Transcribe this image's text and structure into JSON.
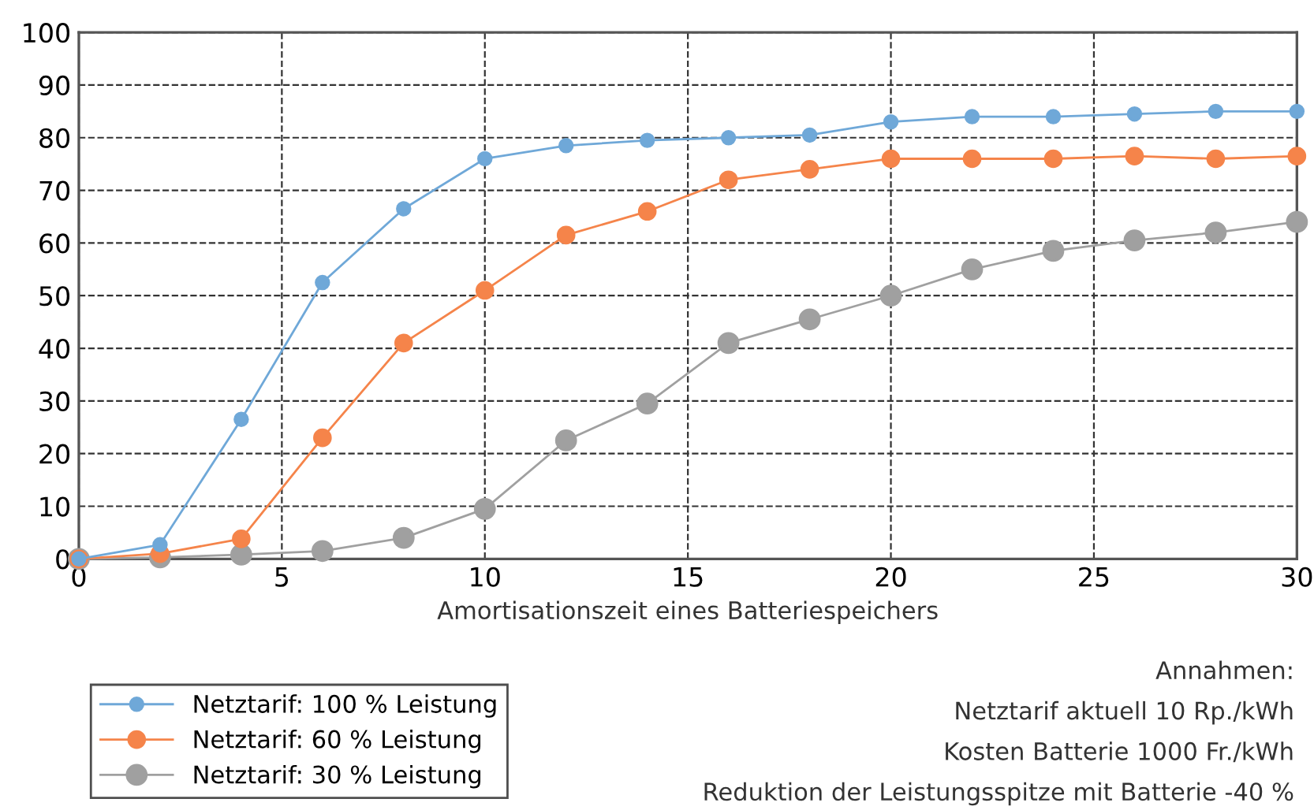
{
  "chart_data": {
    "type": "line",
    "xlabel": "Amortisationszeit eines Batteriespeichers",
    "x": [
      0,
      2,
      4,
      6,
      8,
      10,
      12,
      14,
      16,
      18,
      20,
      22,
      24,
      26,
      28,
      30
    ],
    "series": [
      {
        "name": "Netztarif: 100 % Leistung",
        "color": "#6fa8d8",
        "values": [
          0,
          2.7,
          26.5,
          52.5,
          66.5,
          76,
          78.5,
          79.5,
          80,
          80.5,
          83,
          84,
          84,
          84.5,
          85,
          85
        ]
      },
      {
        "name": "Netztarif: 60 % Leistung",
        "color": "#f5844a",
        "values": [
          0,
          1,
          3.8,
          23,
          41,
          51,
          61.5,
          66,
          72,
          74,
          76,
          76,
          76,
          76.5,
          76,
          76.5
        ]
      },
      {
        "name": "Netztarif: 30 % Leistung",
        "color": "#a0a0a0",
        "values": [
          0,
          0.3,
          0.8,
          1.5,
          4,
          9.5,
          22.5,
          29.5,
          41,
          45.5,
          50,
          55,
          58.5,
          60.5,
          62,
          64
        ]
      }
    ],
    "xlim": [
      0,
      30
    ],
    "ylim": [
      0,
      100
    ],
    "xticks": [
      0,
      5,
      10,
      15,
      20,
      25,
      30
    ],
    "yticks": [
      0,
      10,
      20,
      30,
      40,
      50,
      60,
      70,
      80,
      90,
      100
    ],
    "grid": true,
    "legend": "bottom left",
    "marker": "circle",
    "line_style": "solid",
    "annotations": [
      "Annahmen:",
      "Netztarif aktuell 10 Rp./kWh",
      "Kosten Batterie 1000 Fr./kWh",
      "Reduktion der Leistungsspitze mit Batterie -40 %"
    ]
  }
}
